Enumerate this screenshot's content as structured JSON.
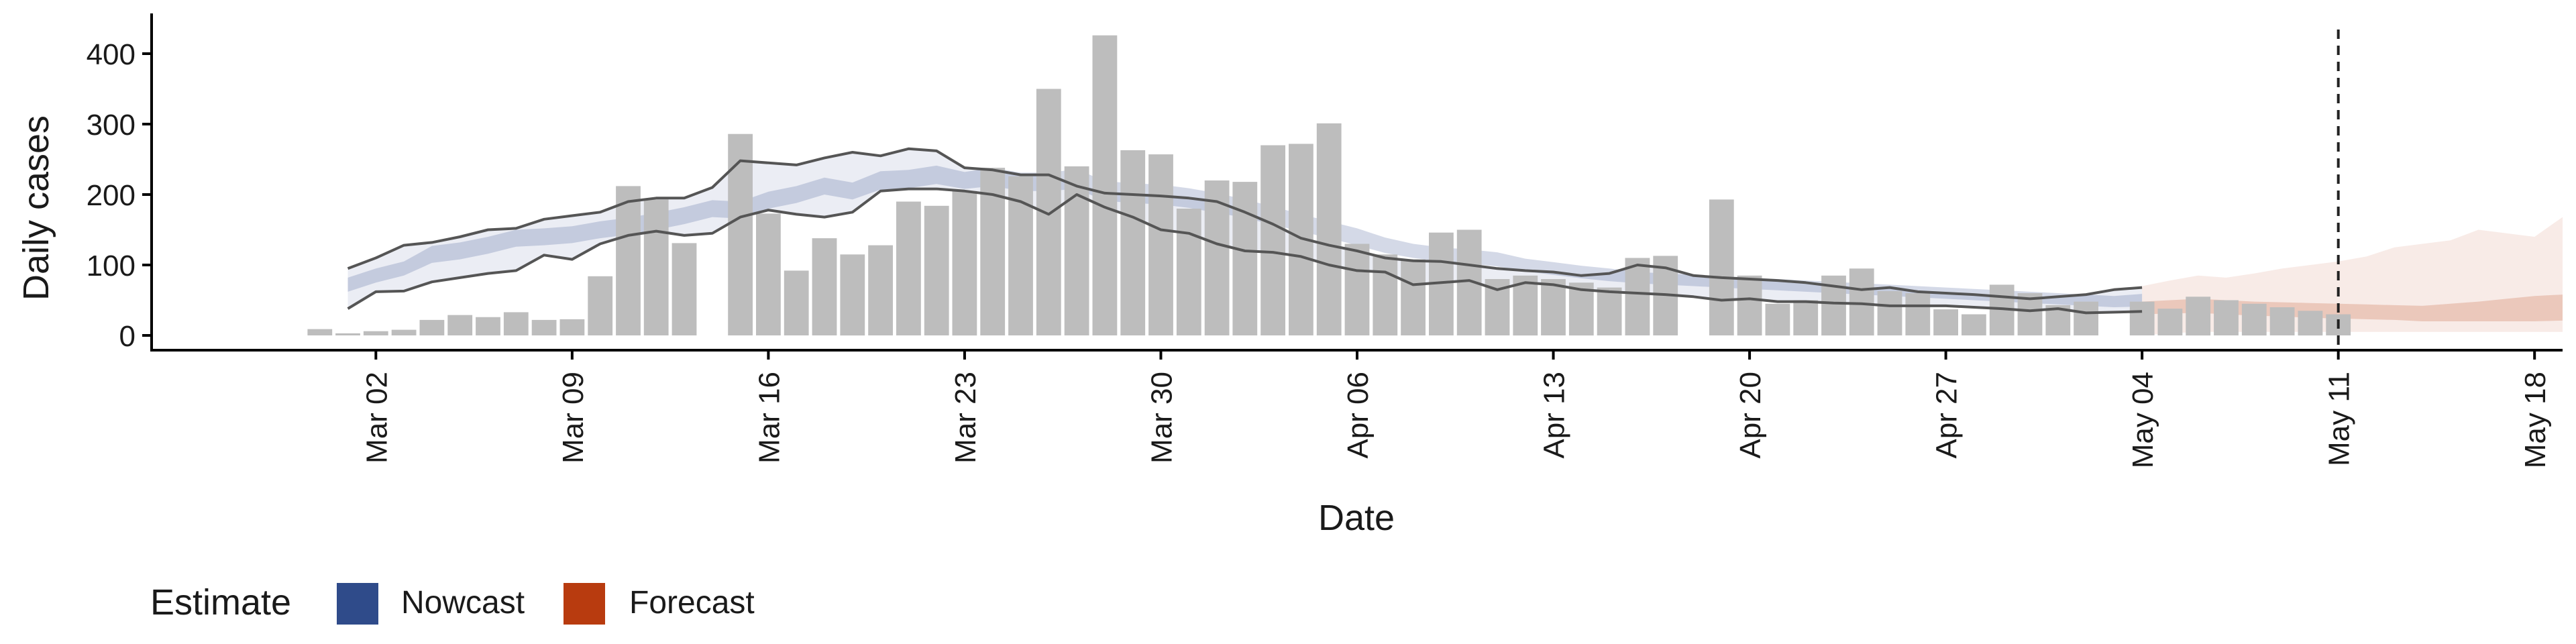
{
  "chart_data": {
    "type": "bar",
    "xlabel": "Date",
    "ylabel": "Daily cases",
    "ylim": [
      0,
      450
    ],
    "yticks": [
      0,
      100,
      200,
      300,
      400
    ],
    "xdomain": [
      "2020-02-23",
      "2020-05-19"
    ],
    "xticks": [
      {
        "date": "2020-03-02",
        "label": "Mar 02"
      },
      {
        "date": "2020-03-09",
        "label": "Mar 09"
      },
      {
        "date": "2020-03-16",
        "label": "Mar 16"
      },
      {
        "date": "2020-03-23",
        "label": "Mar 23"
      },
      {
        "date": "2020-03-30",
        "label": "Mar 30"
      },
      {
        "date": "2020-04-06",
        "label": "Apr 06"
      },
      {
        "date": "2020-04-13",
        "label": "Apr 13"
      },
      {
        "date": "2020-04-20",
        "label": "Apr 20"
      },
      {
        "date": "2020-04-27",
        "label": "Apr 27"
      },
      {
        "date": "2020-05-04",
        "label": "May 04"
      },
      {
        "date": "2020-05-11",
        "label": "May 11"
      },
      {
        "date": "2020-05-18",
        "label": "May 18"
      }
    ],
    "bar_start": "2020-02-29",
    "bar_values": [
      9,
      3,
      6,
      8,
      22,
      29,
      26,
      33,
      22,
      23,
      84,
      212,
      193,
      131,
      null,
      286,
      173,
      92,
      138,
      115,
      128,
      190,
      184,
      205,
      238,
      226,
      350,
      240,
      426,
      263,
      257,
      180,
      220,
      218,
      270,
      272,
      301,
      130,
      115,
      108,
      146,
      150,
      80,
      85,
      80,
      75,
      68,
      110,
      113,
      null,
      193,
      85,
      45,
      50,
      85,
      95,
      63,
      60,
      37,
      30,
      72,
      60,
      43,
      48,
      null,
      48,
      38,
      55,
      50,
      45,
      40,
      35,
      30
    ],
    "band_start": "2020-03-01",
    "nowcast": {
      "median": [
        72,
        85,
        95,
        115,
        120,
        128,
        138,
        140,
        143,
        150,
        155,
        162,
        170,
        180,
        178,
        192,
        200,
        212,
        205,
        220,
        222,
        228,
        220,
        225,
        218,
        218,
        222,
        205,
        202,
        200,
        195,
        188,
        180,
        170,
        160,
        150,
        140,
        128,
        120,
        115,
        112,
        108,
        100,
        95,
        90,
        86,
        82,
        80,
        78,
        76,
        74,
        72,
        70,
        68,
        66,
        64,
        62,
        60,
        58,
        56,
        54,
        52,
        50,
        48,
        50
      ],
      "inner_low": [
        62,
        75,
        85,
        103,
        108,
        116,
        126,
        128,
        131,
        138,
        143,
        150,
        158,
        168,
        166,
        180,
        188,
        200,
        193,
        207,
        209,
        215,
        208,
        212,
        205,
        205,
        208,
        191,
        188,
        186,
        181,
        174,
        167,
        157,
        148,
        138,
        128,
        117,
        110,
        105,
        102,
        98,
        91,
        86,
        81,
        77,
        74,
        72,
        70,
        68,
        66,
        64,
        62,
        60,
        58,
        56,
        54,
        52,
        50,
        48,
        46,
        44,
        42,
        40,
        41
      ],
      "inner_high": [
        82,
        95,
        105,
        127,
        132,
        140,
        150,
        152,
        155,
        162,
        167,
        174,
        182,
        192,
        190,
        204,
        212,
        224,
        217,
        233,
        235,
        241,
        232,
        238,
        231,
        231,
        236,
        219,
        216,
        214,
        209,
        202,
        193,
        183,
        172,
        162,
        152,
        139,
        130,
        125,
        122,
        118,
        109,
        104,
        99,
        95,
        90,
        88,
        86,
        84,
        82,
        80,
        78,
        76,
        74,
        72,
        70,
        68,
        66,
        64,
        62,
        60,
        58,
        56,
        59
      ],
      "outer_low": [
        38,
        62,
        63,
        76,
        82,
        88,
        92,
        114,
        108,
        130,
        142,
        148,
        142,
        145,
        168,
        178,
        172,
        168,
        175,
        205,
        208,
        208,
        205,
        200,
        190,
        172,
        200,
        182,
        168,
        150,
        145,
        130,
        120,
        118,
        112,
        100,
        92,
        90,
        72,
        75,
        78,
        65,
        75,
        72,
        65,
        62,
        60,
        58,
        55,
        50,
        52,
        48,
        48,
        46,
        45,
        42,
        42,
        42,
        40,
        38,
        35,
        38,
        32,
        33,
        34
      ],
      "outer_high": [
        95,
        110,
        128,
        132,
        140,
        150,
        152,
        165,
        170,
        175,
        190,
        195,
        195,
        210,
        248,
        245,
        242,
        252,
        260,
        255,
        265,
        262,
        238,
        235,
        228,
        228,
        212,
        202,
        200,
        198,
        195,
        190,
        175,
        158,
        138,
        128,
        120,
        110,
        106,
        105,
        100,
        95,
        92,
        90,
        85,
        88,
        100,
        96,
        85,
        82,
        80,
        78,
        75,
        70,
        65,
        68,
        62,
        60,
        58,
        55,
        52,
        55,
        58,
        65,
        68
      ]
    },
    "forecast_start": "2020-05-04",
    "forecast": {
      "median": [
        38,
        40,
        42,
        40,
        38,
        37,
        35,
        34,
        33,
        32,
        30,
        32,
        34,
        36,
        38,
        40
      ],
      "inner_low": [
        30,
        31,
        32,
        30,
        28,
        27,
        25,
        24,
        23,
        22,
        20,
        20,
        20,
        20,
        20,
        21
      ],
      "inner_high": [
        48,
        50,
        52,
        50,
        48,
        47,
        46,
        45,
        44,
        43,
        42,
        45,
        48,
        52,
        56,
        58
      ],
      "outer_low": [
        0,
        3,
        5,
        5,
        5,
        5,
        5,
        5,
        5,
        5,
        5,
        5,
        5,
        5,
        5,
        5
      ],
      "outer_high": [
        70,
        78,
        85,
        82,
        88,
        95,
        100,
        105,
        112,
        125,
        130,
        135,
        150,
        145,
        140,
        168
      ]
    },
    "vline_date": "2020-05-11",
    "colors": {
      "bar": "#bdbdbd",
      "nowcast": "#3a5390",
      "forecast": "#b83b0f",
      "outline": "#555555",
      "vline": "#222222"
    },
    "legend": {
      "title": "Estimate",
      "items": [
        {
          "label": "Nowcast",
          "color": "#2f4b8a"
        },
        {
          "label": "Forecast",
          "color": "#b83b0f"
        }
      ]
    }
  }
}
